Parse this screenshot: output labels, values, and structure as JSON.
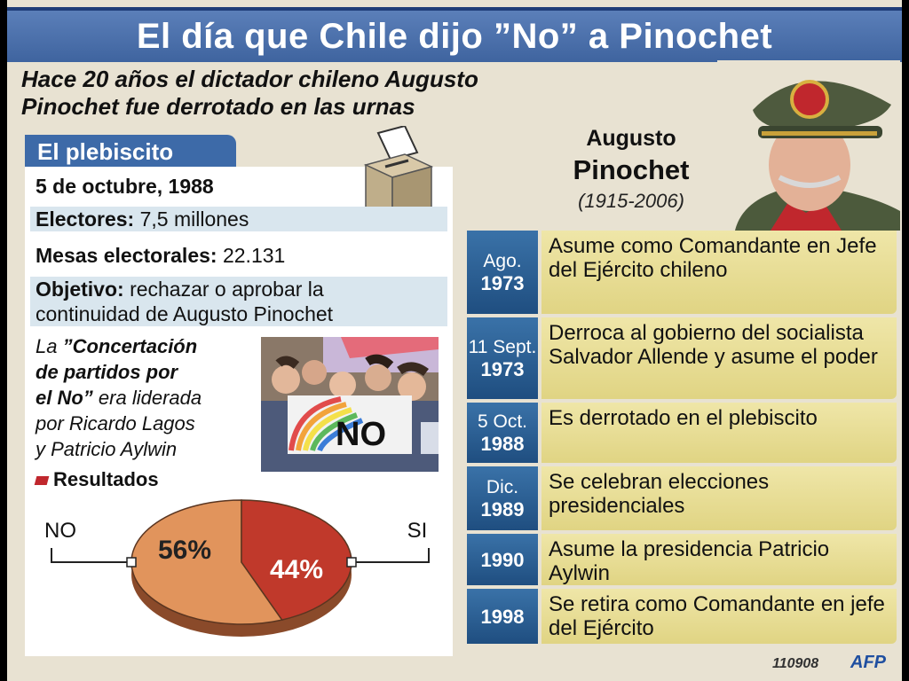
{
  "header": {
    "title": "El día que Chile dijo ”No” a Pinochet",
    "subtitle_line1": "Hace 20 años el dictador chileno Augusto",
    "subtitle_line2": "Pinochet fue derrotado en las urnas"
  },
  "plebiscito": {
    "tab_label": "El plebiscito",
    "date": "5 de octubre, 1988",
    "electores_label": "Electores:",
    "electores_value": "7,5 millones",
    "mesas_label": "Mesas electorales:",
    "mesas_value": "22.131",
    "objetivo_label": "Objetivo:",
    "objetivo_line1": "rechazar o aprobar la",
    "objetivo_line2": "continuidad de Augusto Pinochet",
    "concert_intro": "La ",
    "concert_bold1": "”Concertación",
    "concert_bold2": "de partidos por",
    "concert_bold3": "el No”",
    "concert_rest1": " era liderada",
    "concert_rest2": "por Ricardo Lagos",
    "concert_rest3": "y Patricio Aylwin",
    "photo_sign": "NO",
    "results_label": "Resultados"
  },
  "chart_data": {
    "type": "pie",
    "title": "Resultados",
    "categories": [
      "NO",
      "SI"
    ],
    "values": [
      56,
      44
    ],
    "labels": [
      "56%",
      "44%"
    ],
    "colors": [
      "#e1945c",
      "#c0392b"
    ]
  },
  "person": {
    "first_name": "Augusto",
    "last_name": "Pinochet",
    "years": "(1915-2006)"
  },
  "timeline": [
    {
      "date_top": "Ago.",
      "date_year": "1973",
      "text": "Asume como Comandante en Jefe del Ejército chileno"
    },
    {
      "date_top": "11 Sept.",
      "date_year": "1973",
      "text": "Derroca al gobierno del socialista Salvador Allende y asume el poder"
    },
    {
      "date_top": "5 Oct.",
      "date_year": "1988",
      "text": "Es derrotado en el plebiscito"
    },
    {
      "date_top": "Dic.",
      "date_year": "1989",
      "text": "Se celebran elecciones presidenciales"
    },
    {
      "date_top": "",
      "date_year": "1990",
      "text": "Asume la presidencia Patricio Aylwin"
    },
    {
      "date_top": "",
      "date_year": "1998",
      "text": "Se retira como Comandante en jefe del Ejército"
    }
  ],
  "footer": {
    "code": "110908",
    "agency": "AFP"
  }
}
